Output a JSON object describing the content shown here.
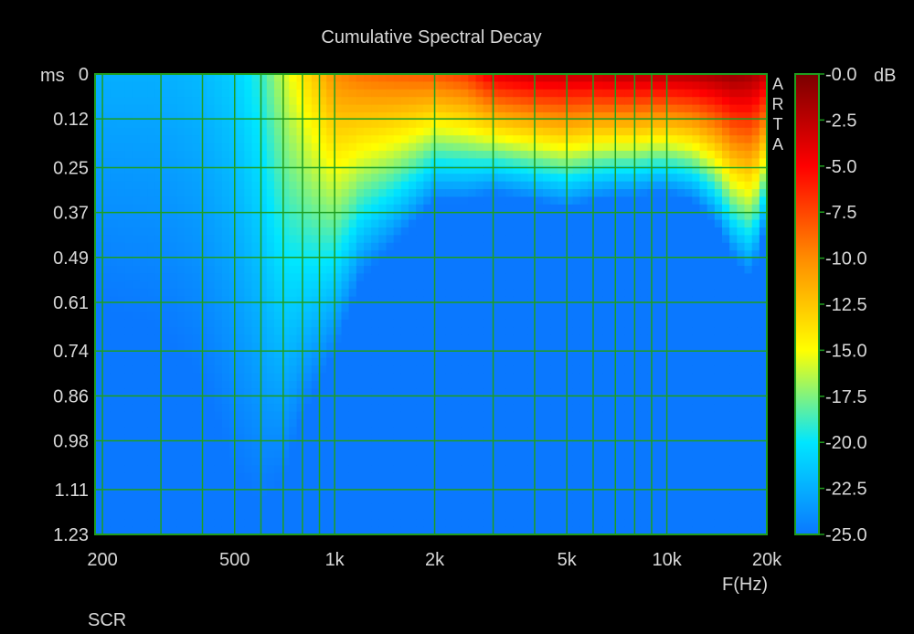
{
  "chart_data": {
    "type": "heatmap",
    "title": "Cumulative Spectral Decay",
    "xlabel": "F(Hz)",
    "ylabel": "ms",
    "x_scale": "log",
    "xlim": [
      190,
      20000
    ],
    "ylim": [
      0,
      1.23
    ],
    "x_ticks": [
      200,
      500,
      1000,
      2000,
      5000,
      10000,
      20000
    ],
    "x_tick_labels": [
      "200",
      "500",
      "1k",
      "2k",
      "5k",
      "10k",
      "20k"
    ],
    "x_gridlines": [
      200,
      300,
      400,
      500,
      600,
      700,
      800,
      900,
      1000,
      2000,
      3000,
      4000,
      5000,
      6000,
      7000,
      8000,
      9000,
      10000,
      20000
    ],
    "y_ticks": [
      0,
      0.12,
      0.25,
      0.37,
      0.49,
      0.61,
      0.74,
      0.86,
      0.98,
      1.11,
      1.23
    ],
    "y_tick_labels": [
      "0",
      "0.12",
      "0.25",
      "0.37",
      "0.49",
      "0.61",
      "0.74",
      "0.86",
      "0.98",
      "1.11",
      "1.23"
    ],
    "grid": true,
    "grid_color": "#1f9e1f",
    "colorbar": {
      "label_unit": "dB",
      "range": [
        -25,
        0
      ],
      "ticks": [
        0,
        -2.5,
        -5,
        -7.5,
        -10,
        -12.5,
        -15,
        -17.5,
        -20,
        -22.5,
        -25
      ],
      "tick_labels": [
        "-0.0",
        "-2.5",
        "-5.0",
        "-7.5",
        "-10.0",
        "-12.5",
        "-15.0",
        "-17.5",
        "-20.0",
        "-22.5",
        "-25.0"
      ],
      "colors": [
        "#0a78ff",
        "#00e6ff",
        "#ffff00",
        "#ff8c00",
        "#ff0000",
        "#7a0000"
      ]
    },
    "side_text": [
      "A",
      "R",
      "T",
      "A"
    ],
    "footer": "SCR",
    "freq_hz": [
      200,
      300,
      400,
      500,
      600,
      700,
      800,
      900,
      1000,
      1200,
      1500,
      2000,
      2500,
      3000,
      4000,
      5000,
      6000,
      7000,
      8000,
      9000,
      10000,
      12000,
      14000,
      16000,
      18000,
      20000
    ],
    "initial_level_db": [
      -22.5,
      -22.5,
      -22,
      -21,
      -19,
      -16,
      -14,
      -12,
      -10,
      -9,
      -8.5,
      -8,
      -7,
      -4,
      -3,
      -2.8,
      -2.8,
      -2.4,
      -2.4,
      -2.4,
      -2.3,
      -2,
      -1.5,
      -1,
      -1.5,
      -3
    ],
    "decay_time_ms": [
      0.62,
      0.68,
      0.82,
      1.06,
      1.14,
      1.08,
      0.92,
      0.82,
      0.74,
      0.55,
      0.46,
      0.34,
      0.34,
      0.32,
      0.34,
      0.36,
      0.34,
      0.33,
      0.33,
      0.32,
      0.32,
      0.34,
      0.4,
      0.5,
      0.55,
      0.4
    ]
  }
}
